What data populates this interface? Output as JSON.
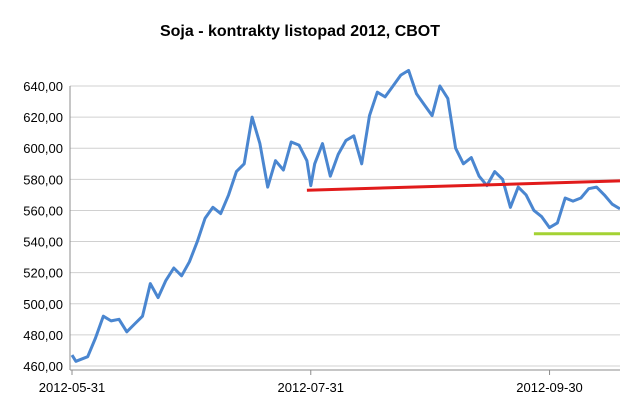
{
  "chart_data": {
    "type": "line",
    "title": "Soja - kontrakty listopad 2012, CBOT",
    "xlabel": "",
    "ylabel": "",
    "ylim": [
      460,
      640
    ],
    "y_ticks": [
      "460,00",
      "480,00",
      "500,00",
      "520,00",
      "540,00",
      "560,00",
      "580,00",
      "600,00",
      "620,00",
      "640,00"
    ],
    "x_tick_labels": [
      "2012-05-31",
      "2012-07-31",
      "2012-09-30"
    ],
    "grid": "horizontal",
    "legend": "none",
    "colors": {
      "price": "#4a86d0",
      "red_line": "#e11b1b",
      "green_line": "#a4d233",
      "grid": "#d0d0d0",
      "axis": "#8c8c8c"
    },
    "series": [
      {
        "role": "price",
        "x": [
          "2012-05-31",
          "2012-06-01",
          "2012-06-04",
          "2012-06-06",
          "2012-06-08",
          "2012-06-10",
          "2012-06-12",
          "2012-06-14",
          "2012-06-16",
          "2012-06-18",
          "2012-06-20",
          "2012-06-22",
          "2012-06-24",
          "2012-06-26",
          "2012-06-28",
          "2012-06-30",
          "2012-07-02",
          "2012-07-04",
          "2012-07-06",
          "2012-07-08",
          "2012-07-10",
          "2012-07-12",
          "2012-07-14",
          "2012-07-16",
          "2012-07-18",
          "2012-07-20",
          "2012-07-22",
          "2012-07-24",
          "2012-07-26",
          "2012-07-28",
          "2012-07-30",
          "2012-07-31",
          "2012-08-01",
          "2012-08-03",
          "2012-08-05",
          "2012-08-07",
          "2012-08-09",
          "2012-08-11",
          "2012-08-13",
          "2012-08-15",
          "2012-08-17",
          "2012-08-19",
          "2012-08-21",
          "2012-08-23",
          "2012-08-25",
          "2012-08-27",
          "2012-08-29",
          "2012-08-31",
          "2012-09-02",
          "2012-09-04",
          "2012-09-06",
          "2012-09-08",
          "2012-09-10",
          "2012-09-12",
          "2012-09-14",
          "2012-09-16",
          "2012-09-18",
          "2012-09-20",
          "2012-09-22",
          "2012-09-24",
          "2012-09-26",
          "2012-09-28",
          "2012-09-30",
          "2012-10-02",
          "2012-10-04",
          "2012-10-06",
          "2012-10-08",
          "2012-10-10",
          "2012-10-12",
          "2012-10-14",
          "2012-10-16",
          "2012-10-18"
        ],
        "values": [
          467,
          463,
          466,
          478,
          492,
          489,
          490,
          482,
          487,
          492,
          513,
          504,
          515,
          523,
          518,
          527,
          540,
          555,
          562,
          558,
          570,
          585,
          590,
          620,
          603,
          575,
          592,
          586,
          604,
          602,
          592,
          576,
          590,
          603,
          582,
          596,
          605,
          608,
          590,
          621,
          636,
          633,
          640,
          647,
          650,
          635,
          628,
          621,
          640,
          632,
          600,
          590,
          594,
          582,
          576,
          585,
          580,
          562,
          575,
          570,
          560,
          556,
          549,
          552,
          568,
          566,
          568,
          574,
          575,
          570,
          564,
          561
        ]
      },
      {
        "role": "red_line",
        "x": [
          "2012-07-30",
          "2012-10-18"
        ],
        "values": [
          573,
          579
        ]
      },
      {
        "role": "green_line",
        "x": [
          "2012-09-26",
          "2012-10-18"
        ],
        "values": [
          545,
          545
        ]
      }
    ]
  }
}
